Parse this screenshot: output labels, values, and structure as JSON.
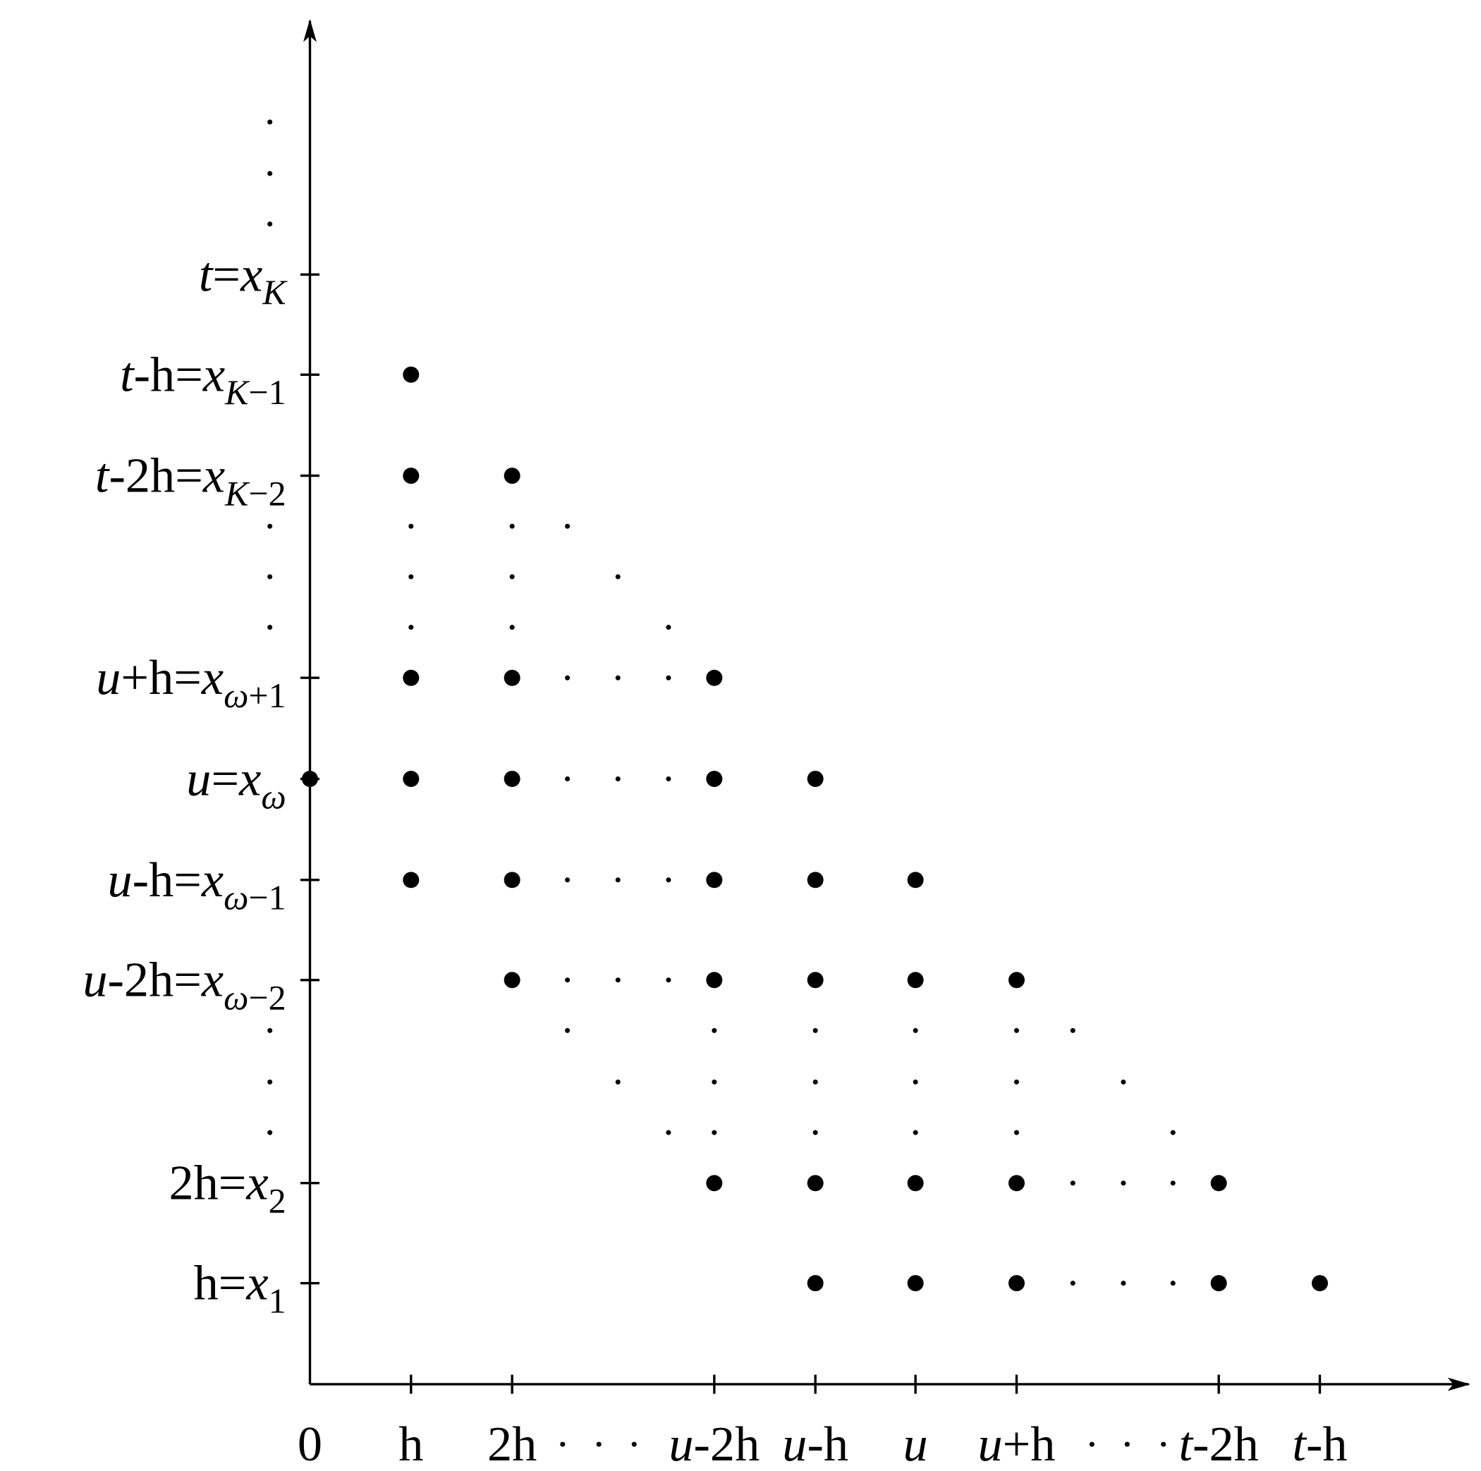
{
  "y_labels": [
    [
      {
        "text": "t",
        "style": "italic"
      },
      {
        "text": "=",
        "style": "roman"
      },
      {
        "text": "x",
        "style": "italic"
      },
      {
        "text": "K",
        "style": "sub-italic"
      }
    ],
    [
      {
        "text": "t",
        "style": "italic"
      },
      {
        "text": "-h=",
        "style": "roman"
      },
      {
        "text": "x",
        "style": "italic"
      },
      {
        "text": "K",
        "style": "sub-italic"
      },
      {
        "text": "−1",
        "style": "sub-roman"
      }
    ],
    [
      {
        "text": "t",
        "style": "italic"
      },
      {
        "text": "-2h=",
        "style": "roman"
      },
      {
        "text": "x",
        "style": "italic"
      },
      {
        "text": "K",
        "style": "sub-italic"
      },
      {
        "text": "−2",
        "style": "sub-roman"
      }
    ],
    [
      {
        "text": "u",
        "style": "italic"
      },
      {
        "text": "+h=",
        "style": "roman"
      },
      {
        "text": "x",
        "style": "italic"
      },
      {
        "text": "ω",
        "style": "sub-italic"
      },
      {
        "text": "+1",
        "style": "sub-roman"
      }
    ],
    [
      {
        "text": "u",
        "style": "italic"
      },
      {
        "text": "=",
        "style": "roman"
      },
      {
        "text": "x",
        "style": "italic"
      },
      {
        "text": "ω",
        "style": "sub-italic"
      }
    ],
    [
      {
        "text": "u",
        "style": "italic"
      },
      {
        "text": "-h=",
        "style": "roman"
      },
      {
        "text": "x",
        "style": "italic"
      },
      {
        "text": "ω",
        "style": "sub-italic"
      },
      {
        "text": "−1",
        "style": "sub-roman"
      }
    ],
    [
      {
        "text": "u",
        "style": "italic"
      },
      {
        "text": "-2h=",
        "style": "roman"
      },
      {
        "text": "x",
        "style": "italic"
      },
      {
        "text": "ω",
        "style": "sub-italic"
      },
      {
        "text": "−2",
        "style": "sub-roman"
      }
    ],
    [
      {
        "text": "2h=",
        "style": "roman"
      },
      {
        "text": "x",
        "style": "italic"
      },
      {
        "text": "2",
        "style": "sub-roman"
      }
    ],
    [
      {
        "text": "h=",
        "style": "roman"
      },
      {
        "text": "x",
        "style": "italic"
      },
      {
        "text": "1",
        "style": "sub-roman"
      }
    ]
  ],
  "x_labels": [
    [
      {
        "text": "0",
        "style": "roman"
      }
    ],
    [
      {
        "text": "h",
        "style": "roman"
      }
    ],
    [
      {
        "text": "2h",
        "style": "roman"
      }
    ],
    [
      {
        "text": "u",
        "style": "italic"
      },
      {
        "text": "-2h",
        "style": "roman"
      }
    ],
    [
      {
        "text": "u",
        "style": "italic"
      },
      {
        "text": "-h",
        "style": "roman"
      }
    ],
    [
      {
        "text": "u",
        "style": "italic"
      }
    ],
    [
      {
        "text": "u",
        "style": "italic"
      },
      {
        "text": "+h",
        "style": "roman"
      }
    ],
    [
      {
        "text": "t",
        "style": "italic"
      },
      {
        "text": "-2h",
        "style": "roman"
      }
    ],
    [
      {
        "text": "t",
        "style": "italic"
      },
      {
        "text": "-h",
        "style": "roman"
      }
    ]
  ]
}
